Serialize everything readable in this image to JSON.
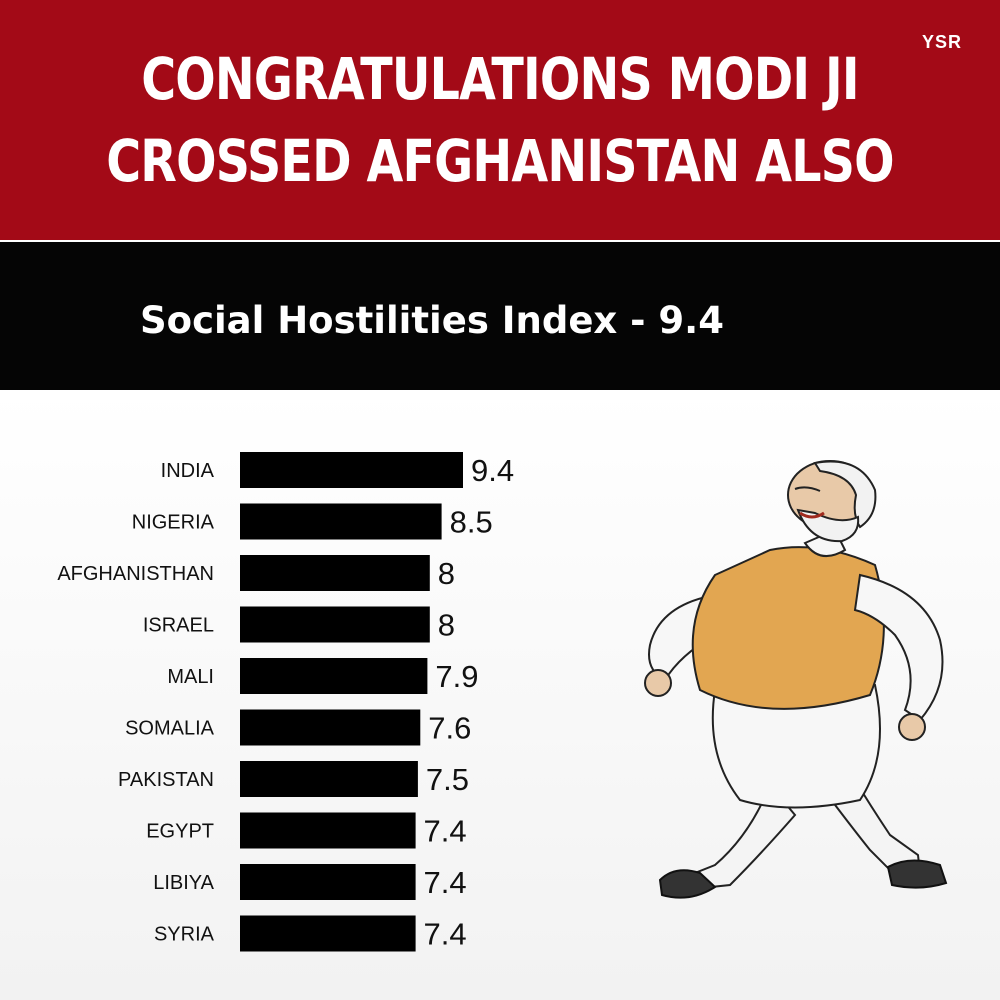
{
  "header": {
    "title_line1": "CONGRATULATIONS MODI JI",
    "title_line2": "CROSSED AFGHANISTAN ALSO",
    "brand": "YSR"
  },
  "subtitle": "Social Hostilities Index - 9.4",
  "colors": {
    "header_bg": "#a30a17",
    "subbar_bg": "#050505",
    "bar": "#000000"
  },
  "chart_data": {
    "type": "bar",
    "orientation": "horizontal",
    "categories": [
      "INDIA",
      "NIGERIA",
      "AFGHANISTHAN",
      "ISRAEL",
      "MALI",
      "SOMALIA",
      "PAKISTAN",
      "EGYPT",
      "LIBIYA",
      "SYRIA"
    ],
    "values": [
      9.4,
      8.5,
      8,
      8,
      7.9,
      7.6,
      7.5,
      7.4,
      7.4,
      7.4
    ],
    "value_labels": [
      "9.4",
      "8.5",
      "8",
      "8",
      "7.9",
      "7.6",
      "7.5",
      "7.4",
      "7.4",
      "7.4"
    ],
    "title": "Social Hostilities Index - 9.4",
    "data_labels": true,
    "grid": false
  },
  "illustration": {
    "name": "walking-caricature"
  }
}
